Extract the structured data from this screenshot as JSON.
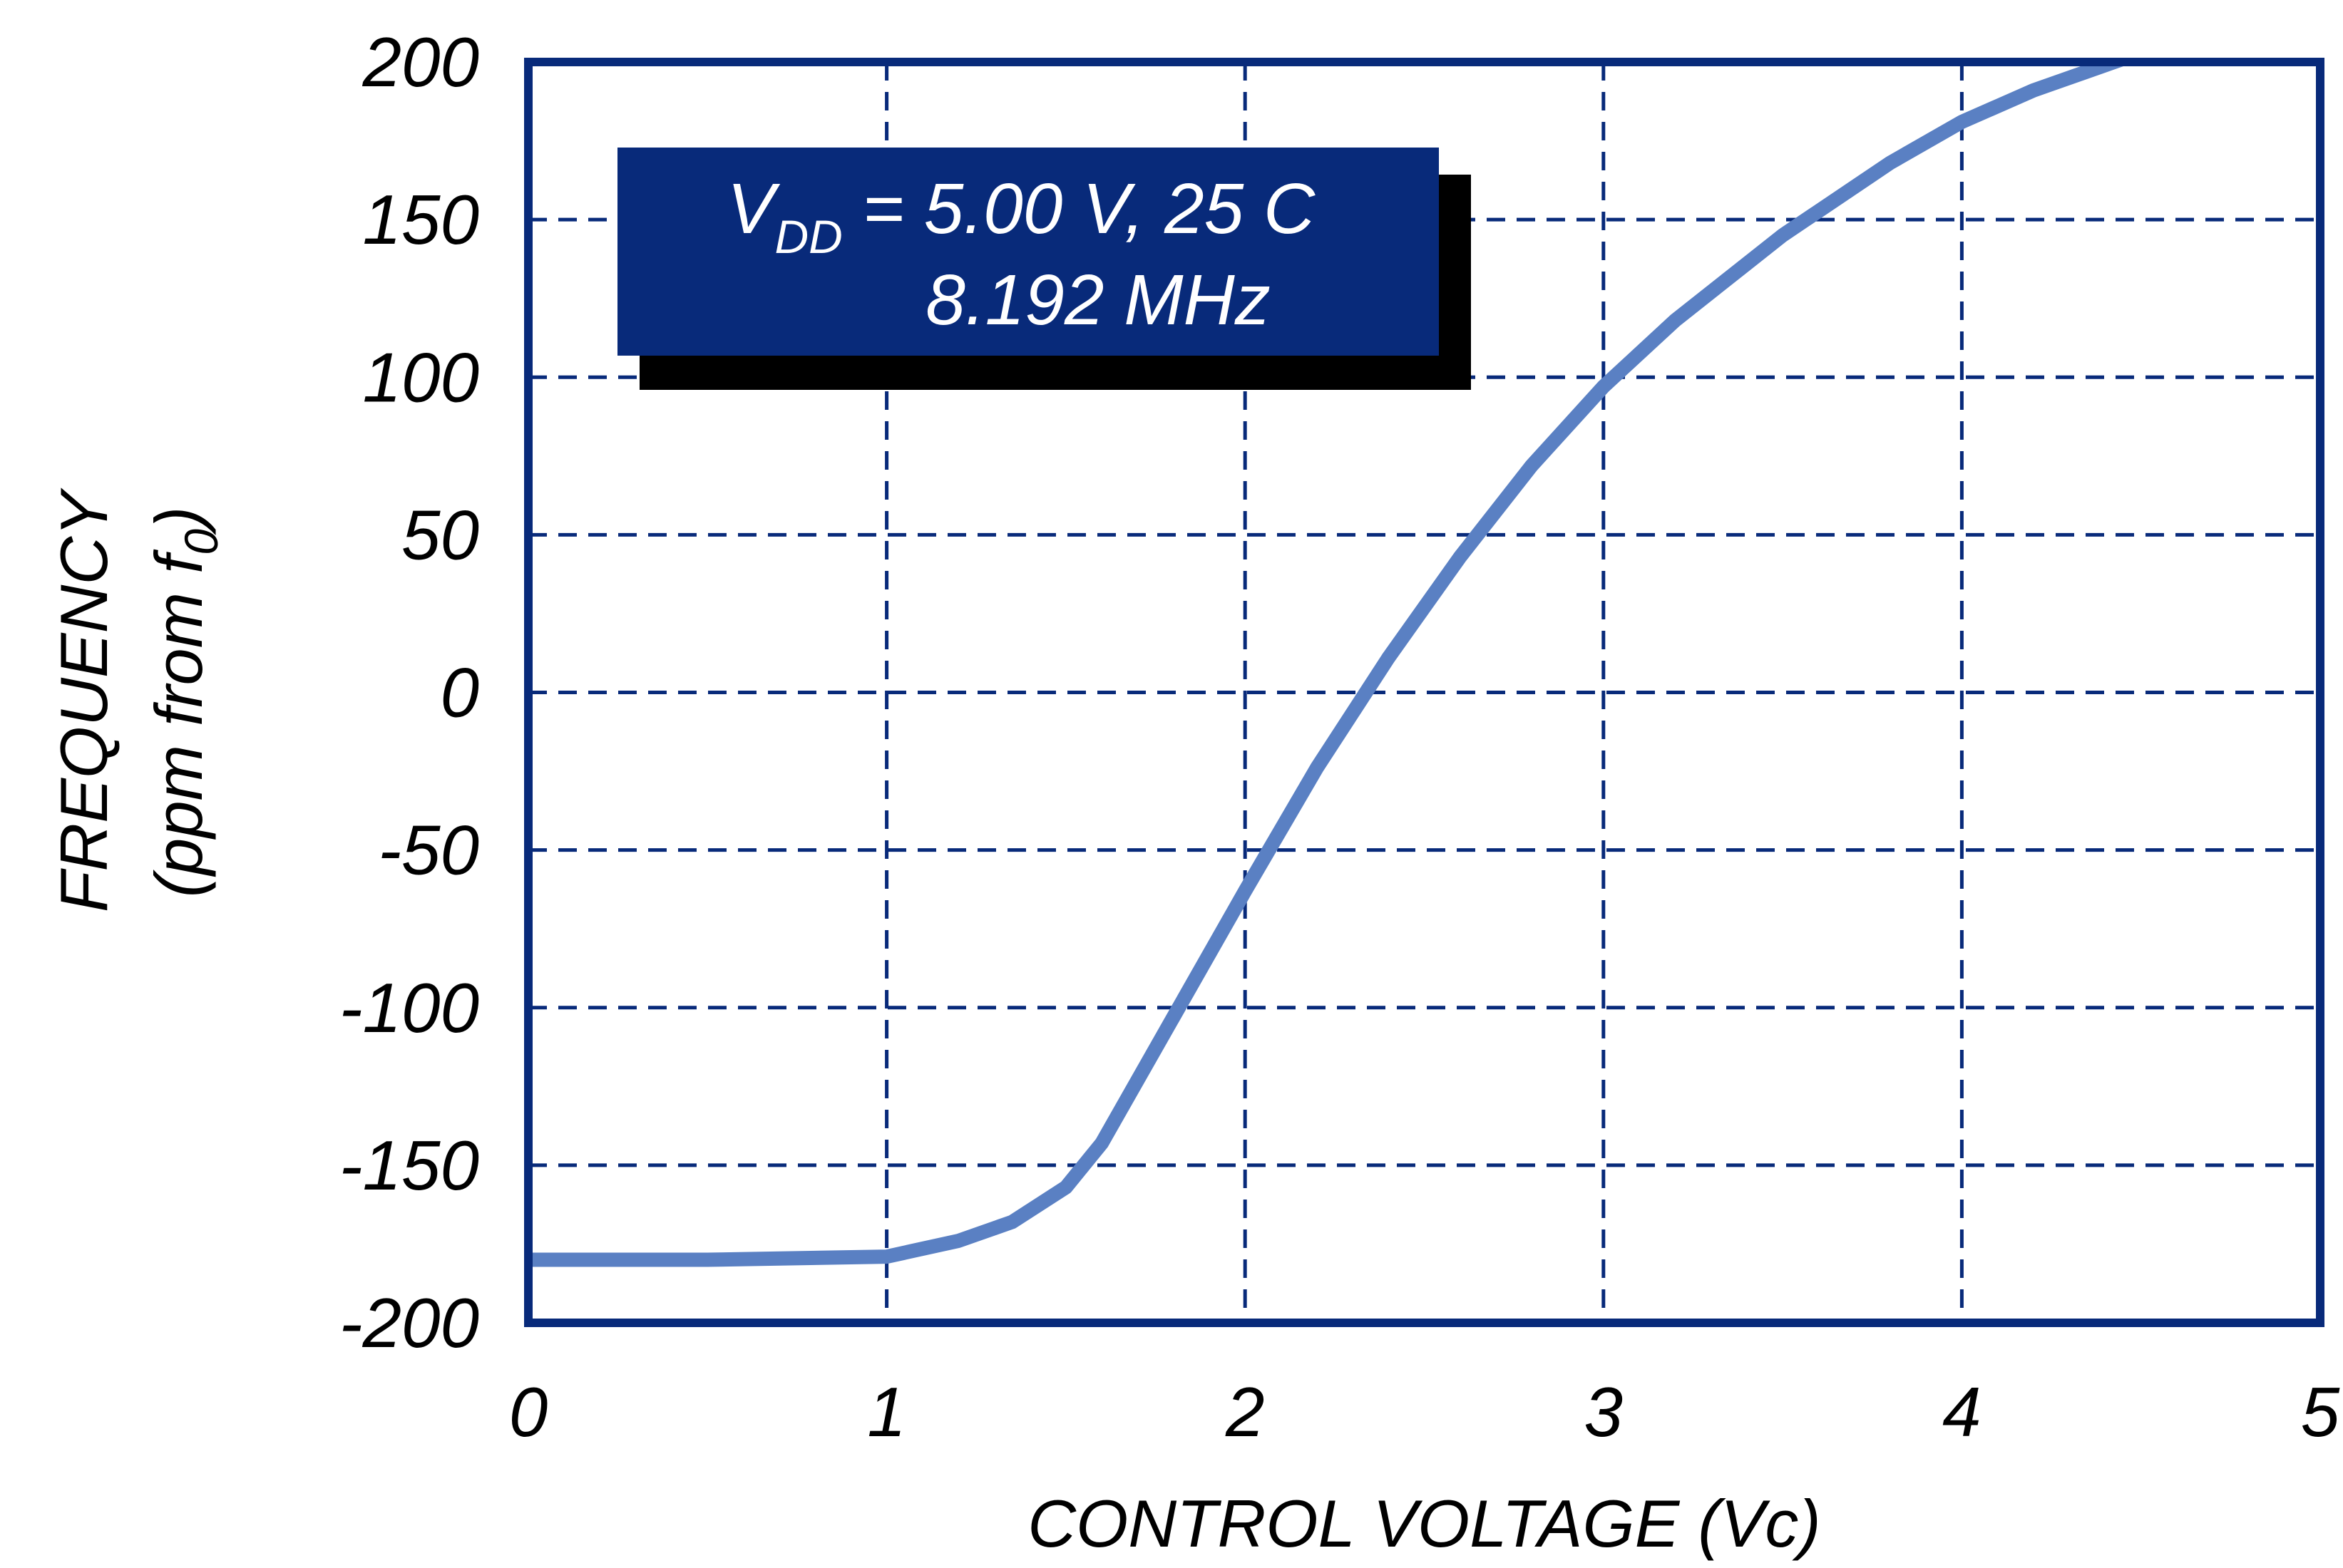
{
  "colors": {
    "frame": "#082a7a",
    "grid": "#082a7a",
    "curve": "#5a80c3",
    "annotation_fill": "#082a7a",
    "annotation_shadow": "#000000",
    "annotation_text": "#ffffff",
    "text": "#000000"
  },
  "chart_data": {
    "type": "line",
    "title": "",
    "xlabel": "CONTROL VOLTAGE (Vc)",
    "ylabel": {
      "line1": "FREQUENCY",
      "line2_main": "(ppm from f",
      "line2_sub": "0",
      "line2_end": ")"
    },
    "xlim": [
      0,
      5
    ],
    "ylim": [
      -200,
      200
    ],
    "x_ticks": [
      "0",
      "1",
      "2",
      "3",
      "4",
      "5"
    ],
    "y_ticks": [
      "200",
      "150",
      "100",
      "50",
      "0",
      "-50",
      "-100",
      "-150",
      "-200"
    ],
    "x_tick_values": [
      0,
      1,
      2,
      3,
      4,
      5
    ],
    "y_tick_values": [
      200,
      150,
      100,
      50,
      0,
      -50,
      -100,
      -150,
      -200
    ],
    "grid": true,
    "annotation": {
      "line1_main": "V",
      "line1_sub": "DD",
      "line1_rest": " = 5.00 V, 25 C",
      "line2": "8.192 MHz"
    },
    "series": [
      {
        "x": [
          0,
          0.5,
          1.0,
          1.2,
          1.35,
          1.5,
          1.6,
          1.8,
          2.0,
          2.2,
          2.4,
          2.6,
          2.8,
          3.0,
          3.2,
          3.5,
          3.8,
          4.0,
          4.2,
          4.5,
          4.75
        ],
        "y": [
          -180,
          -180,
          -179,
          -174,
          -168,
          -157,
          -143,
          -103,
          -63,
          -24,
          11,
          43,
          72,
          97,
          118,
          145,
          168,
          181,
          191,
          203,
          213
        ]
      }
    ]
  }
}
